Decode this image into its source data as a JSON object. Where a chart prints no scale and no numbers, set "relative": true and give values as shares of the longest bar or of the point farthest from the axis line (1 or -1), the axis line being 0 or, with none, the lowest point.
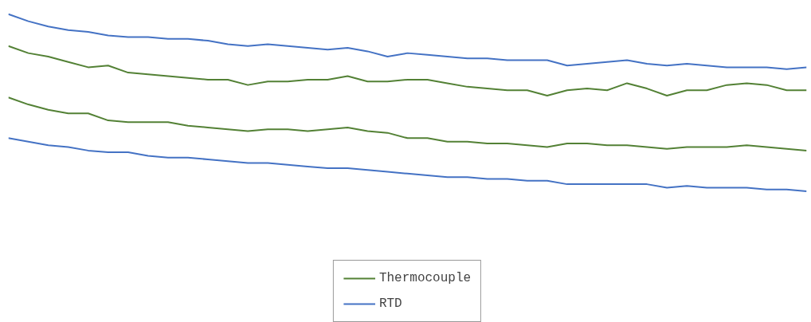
{
  "chart_data": {
    "type": "line",
    "relative": true,
    "grid": false,
    "legend": "bottom",
    "tick_labels": false,
    "line_style": "solid",
    "marker": "none",
    "categories": [
      null,
      null,
      null,
      null,
      null,
      null,
      null,
      null,
      null,
      null,
      null,
      null,
      null,
      null,
      null,
      null,
      null,
      null,
      null,
      null,
      null,
      null,
      null,
      null,
      null,
      null,
      null,
      null,
      null,
      null,
      null,
      null,
      null,
      null,
      null,
      null,
      null,
      null,
      null,
      null,
      null
    ],
    "series": [
      {
        "name": "Thermocouple",
        "color": "#538135",
        "values": [
          0.82,
          0.78,
          0.76,
          0.73,
          0.7,
          0.71,
          0.67,
          0.66,
          0.65,
          0.64,
          0.63,
          0.63,
          0.6,
          0.62,
          0.62,
          0.63,
          0.63,
          0.65,
          0.62,
          0.62,
          0.63,
          0.63,
          0.61,
          0.59,
          0.58,
          0.57,
          0.57,
          0.54,
          0.57,
          0.58,
          0.57,
          0.61,
          0.58,
          0.54,
          0.57,
          0.57,
          0.6,
          0.61,
          0.6,
          0.57,
          0.57
        ]
      },
      {
        "name": "RTD",
        "color": "#4472c4",
        "values": [
          1.0,
          0.96,
          0.93,
          0.91,
          0.9,
          0.88,
          0.87,
          0.87,
          0.86,
          0.86,
          0.85,
          0.83,
          0.82,
          0.83,
          0.82,
          0.81,
          0.8,
          0.81,
          0.79,
          0.76,
          0.78,
          0.77,
          0.76,
          0.75,
          0.75,
          0.74,
          0.74,
          0.74,
          0.71,
          0.72,
          0.73,
          0.74,
          0.72,
          0.71,
          0.72,
          0.71,
          0.7,
          0.7,
          0.7,
          0.69,
          0.7
        ]
      },
      {
        "color": "#538135",
        "values": [
          0.53,
          0.49,
          0.46,
          0.44,
          0.44,
          0.4,
          0.39,
          0.39,
          0.39,
          0.37,
          0.36,
          0.35,
          0.34,
          0.35,
          0.35,
          0.34,
          0.35,
          0.36,
          0.34,
          0.33,
          0.3,
          0.3,
          0.28,
          0.28,
          0.27,
          0.27,
          0.26,
          0.25,
          0.27,
          0.27,
          0.26,
          0.26,
          0.25,
          0.24,
          0.25,
          0.25,
          0.25,
          0.26,
          0.25,
          0.24,
          0.23
        ]
      },
      {
        "color": "#4472c4",
        "values": [
          0.3,
          0.28,
          0.26,
          0.25,
          0.23,
          0.22,
          0.22,
          0.2,
          0.19,
          0.19,
          0.18,
          0.17,
          0.16,
          0.16,
          0.15,
          0.14,
          0.13,
          0.13,
          0.12,
          0.11,
          0.1,
          0.09,
          0.08,
          0.08,
          0.07,
          0.07,
          0.06,
          0.06,
          0.04,
          0.04,
          0.04,
          0.04,
          0.04,
          0.02,
          0.03,
          0.02,
          0.02,
          0.02,
          0.01,
          0.01,
          0.0
        ]
      }
    ]
  }
}
